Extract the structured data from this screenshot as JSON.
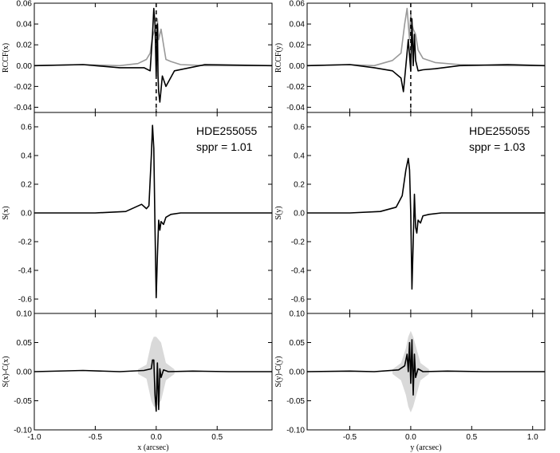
{
  "chart_data": [
    {
      "type": "line",
      "panel": "top-left",
      "ylabel": "RCCF(x)",
      "xlim": [
        -1.0,
        0.95
      ],
      "ylim": [
        -0.045,
        0.06
      ],
      "yticks": [
        -0.04,
        -0.02,
        0.0,
        0.02,
        0.04,
        0.06
      ],
      "ytick_labels": [
        "-0.04",
        "-0.02",
        "0.00",
        "0.02",
        "0.04",
        "0.06"
      ],
      "vline_x": 0.0,
      "series": [
        {
          "color": "#999999",
          "x": [
            -1.0,
            -0.6,
            -0.3,
            -0.15,
            -0.08,
            -0.05,
            -0.03,
            -0.01,
            0.0,
            0.01,
            0.02,
            0.04,
            0.06,
            0.08,
            0.12,
            0.2,
            0.4,
            0.95
          ],
          "y": [
            0.0,
            0.001,
            0.0,
            0.002,
            0.006,
            0.012,
            0.028,
            0.035,
            0.02,
            0.045,
            0.025,
            0.035,
            0.02,
            0.006,
            0.004,
            0.001,
            0.0,
            0.0
          ]
        },
        {
          "color": "#000000",
          "x": [
            -1.0,
            -0.6,
            -0.3,
            -0.1,
            -0.05,
            -0.03,
            -0.02,
            -0.01,
            0.0,
            0.01,
            0.015,
            0.02,
            0.03,
            0.05,
            0.08,
            0.15,
            0.4,
            0.95
          ],
          "y": [
            0.0,
            0.001,
            -0.002,
            -0.002,
            -0.005,
            0.03,
            0.055,
            0.04,
            -0.01,
            0.04,
            -0.01,
            -0.025,
            -0.035,
            -0.01,
            -0.02,
            -0.005,
            0.001,
            0.0
          ]
        }
      ]
    },
    {
      "type": "line",
      "panel": "middle-left",
      "ylabel": "S(x)",
      "xlim": [
        -1.0,
        0.95
      ],
      "ylim": [
        -0.7,
        0.7
      ],
      "yticks": [
        -0.6,
        -0.4,
        -0.2,
        0.0,
        0.2,
        0.4,
        0.6
      ],
      "ytick_labels": [
        "-0.6",
        "-0.4",
        "-0.2",
        "0.0",
        "0.2",
        "0.4",
        "0.6"
      ],
      "annotation": [
        "HDE255055",
        "sppr = 1.01"
      ],
      "series": [
        {
          "color": "#000000",
          "x": [
            -1.0,
            -0.5,
            -0.25,
            -0.12,
            -0.08,
            -0.06,
            -0.04,
            -0.03,
            -0.02,
            -0.01,
            0.0,
            0.01,
            0.02,
            0.03,
            0.04,
            0.06,
            0.08,
            0.12,
            0.2,
            0.5,
            0.95
          ],
          "y": [
            0.0,
            0.0,
            0.01,
            0.06,
            0.03,
            0.05,
            0.4,
            0.61,
            0.45,
            -0.1,
            -0.59,
            -0.3,
            -0.05,
            -0.12,
            -0.06,
            -0.08,
            -0.03,
            -0.01,
            0.0,
            0.0,
            0.0
          ]
        }
      ]
    },
    {
      "type": "area",
      "panel": "bottom-left",
      "ylabel": "S(x)-C(x)",
      "xlabel": "x (arcsec)",
      "xlim": [
        -1.0,
        0.95
      ],
      "ylim": [
        -0.1,
        0.1
      ],
      "yticks": [
        -0.1,
        -0.05,
        0.0,
        0.05,
        0.1
      ],
      "ytick_labels": [
        "-0.10",
        "-0.05",
        "0.00",
        "0.05",
        "0.10"
      ],
      "xticks": [
        -1.0,
        -0.5,
        0.0,
        0.5
      ],
      "xtick_labels": [
        "-1.0",
        "-0.5",
        "0.0",
        "0.5"
      ],
      "envelope": {
        "x": [
          -0.15,
          -0.08,
          -0.04,
          -0.02,
          0.0,
          0.02,
          0.04,
          0.08,
          0.15
        ],
        "y": [
          0.004,
          0.012,
          0.05,
          0.06,
          0.06,
          0.055,
          0.05,
          0.015,
          0.004
        ]
      },
      "series": [
        {
          "color": "#000000",
          "x": [
            -1.0,
            -0.6,
            -0.3,
            -0.1,
            -0.04,
            -0.03,
            -0.02,
            -0.01,
            0.0,
            0.01,
            0.02,
            0.03,
            0.04,
            0.06,
            0.1,
            0.3,
            0.6,
            0.95
          ],
          "y": [
            0.0,
            0.002,
            0.0,
            0.002,
            0.005,
            0.02,
            0.02,
            -0.04,
            -0.068,
            0.015,
            -0.065,
            0.005,
            -0.01,
            0.003,
            0.0,
            0.001,
            0.0,
            0.0
          ]
        }
      ]
    },
    {
      "type": "line",
      "panel": "top-right",
      "ylabel": "RCCF(y)",
      "xlim": [
        -0.85,
        1.1
      ],
      "ylim": [
        -0.045,
        0.06
      ],
      "yticks": [
        -0.04,
        -0.02,
        0.0,
        0.02,
        0.04,
        0.06
      ],
      "ytick_labels": [
        "-0.04",
        "-0.02",
        "0.00",
        "0.02",
        "0.04",
        "0.06"
      ],
      "vline_x": 0.0,
      "series": [
        {
          "color": "#999999",
          "x": [
            -0.85,
            -0.5,
            -0.3,
            -0.15,
            -0.08,
            -0.05,
            -0.03,
            -0.01,
            0.0,
            0.01,
            0.02,
            0.04,
            0.06,
            0.1,
            0.2,
            0.4,
            0.8,
            1.1
          ],
          "y": [
            0.0,
            0.001,
            0.0,
            0.005,
            0.012,
            0.04,
            0.055,
            0.025,
            0.05,
            0.04,
            0.035,
            0.03,
            0.015,
            0.007,
            0.003,
            0.001,
            0.0,
            0.0
          ]
        },
        {
          "color": "#000000",
          "x": [
            -0.85,
            -0.5,
            -0.3,
            -0.15,
            -0.08,
            -0.06,
            -0.04,
            -0.02,
            0.0,
            0.01,
            0.02,
            0.03,
            0.04,
            0.06,
            0.1,
            0.2,
            0.4,
            0.8,
            1.1
          ],
          "y": [
            0.0,
            0.001,
            -0.002,
            -0.005,
            -0.012,
            -0.025,
            0.0,
            0.025,
            -0.005,
            0.045,
            0.0,
            0.03,
            0.005,
            -0.005,
            -0.004,
            -0.003,
            0.0,
            0.001,
            0.0
          ]
        }
      ]
    },
    {
      "type": "line",
      "panel": "middle-right",
      "ylabel": "S(y)",
      "xlim": [
        -0.85,
        1.1
      ],
      "ylim": [
        -0.7,
        0.7
      ],
      "yticks": [
        -0.6,
        -0.4,
        -0.2,
        0.0,
        0.2,
        0.4,
        0.6
      ],
      "ytick_labels": [
        "-0.6",
        "-0.4",
        "-0.2",
        "0.0",
        "0.2",
        "0.4",
        "0.6"
      ],
      "annotation": [
        "HDE255055",
        "sppr = 1.03"
      ],
      "series": [
        {
          "color": "#000000",
          "x": [
            -0.85,
            -0.5,
            -0.25,
            -0.12,
            -0.07,
            -0.04,
            -0.02,
            -0.01,
            0.0,
            0.01,
            0.02,
            0.03,
            0.04,
            0.05,
            0.06,
            0.08,
            0.1,
            0.15,
            0.25,
            0.5,
            1.1
          ],
          "y": [
            0.0,
            0.0,
            0.01,
            0.04,
            0.12,
            0.3,
            0.38,
            0.3,
            0.0,
            -0.53,
            -0.2,
            0.13,
            -0.1,
            -0.14,
            -0.05,
            -0.07,
            -0.02,
            -0.01,
            0.0,
            0.0,
            0.0
          ]
        }
      ]
    },
    {
      "type": "area",
      "panel": "bottom-right",
      "ylabel": "S(y)-C(y)",
      "xlabel": "y (arcsec)",
      "xlim": [
        -0.85,
        1.1
      ],
      "ylim": [
        -0.1,
        0.1
      ],
      "yticks": [
        -0.1,
        -0.05,
        0.0,
        0.05,
        0.1
      ],
      "ytick_labels": [
        "-0.10",
        "-0.05",
        "0.00",
        "0.05",
        "0.10"
      ],
      "xticks": [
        -0.5,
        0.0,
        0.5,
        1.0
      ],
      "xtick_labels": [
        "-0.5",
        "0.0",
        "0.5",
        "1.0"
      ],
      "envelope": {
        "x": [
          -0.15,
          -0.08,
          -0.04,
          -0.02,
          0.0,
          0.02,
          0.04,
          0.08,
          0.15
        ],
        "y": [
          0.004,
          0.015,
          0.04,
          0.06,
          0.07,
          0.06,
          0.045,
          0.015,
          0.004
        ]
      },
      "series": [
        {
          "color": "#000000",
          "x": [
            -0.85,
            -0.5,
            -0.3,
            -0.1,
            -0.05,
            -0.03,
            -0.02,
            -0.01,
            0.0,
            0.01,
            0.02,
            0.03,
            0.04,
            0.06,
            0.1,
            0.3,
            0.6,
            1.1
          ],
          "y": [
            0.0,
            0.001,
            0.0,
            0.003,
            0.01,
            0.03,
            0.0,
            0.05,
            -0.02,
            0.055,
            -0.04,
            0.03,
            -0.01,
            0.005,
            0.0,
            0.001,
            0.0,
            0.0
          ]
        }
      ]
    }
  ]
}
